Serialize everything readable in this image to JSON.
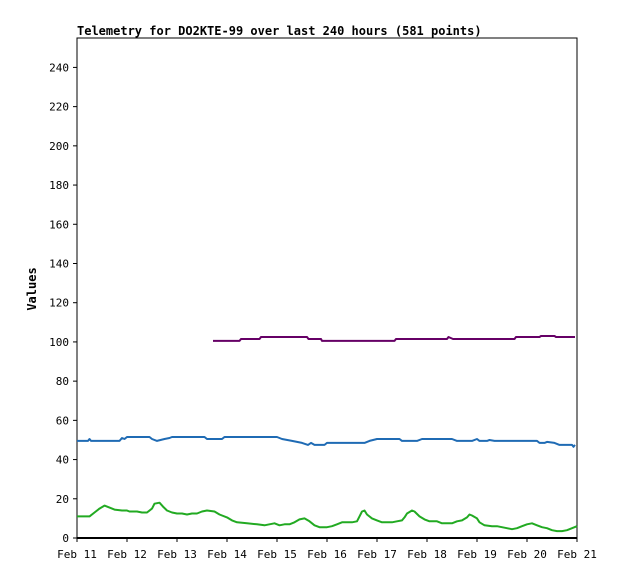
{
  "chart_data": {
    "type": "line",
    "title": "Telemetry for DO2KTE-99 over last 240 hours (581 points)",
    "ylabel": "Values",
    "xlabel": "",
    "ylim": [
      0,
      255
    ],
    "xlim": [
      0,
      10
    ],
    "yticks": [
      0,
      20,
      40,
      60,
      80,
      100,
      120,
      140,
      160,
      180,
      200,
      220,
      240
    ],
    "xticks": [
      {
        "label": "Feb 11",
        "x": 0
      },
      {
        "label": "Feb 12",
        "x": 1
      },
      {
        "label": "Feb 13",
        "x": 2
      },
      {
        "label": "Feb 14",
        "x": 3
      },
      {
        "label": "Feb 15",
        "x": 4
      },
      {
        "label": "Feb 16",
        "x": 5
      },
      {
        "label": "Feb 17",
        "x": 6
      },
      {
        "label": "Feb 18",
        "x": 7
      },
      {
        "label": "Feb 19",
        "x": 8
      },
      {
        "label": "Feb 20",
        "x": 9
      },
      {
        "label": "Feb 21",
        "x": 10
      }
    ],
    "grid": false,
    "series": [
      {
        "color": "#660066",
        "points": [
          [
            2.72,
            100.5
          ],
          [
            3.25,
            100.5
          ],
          [
            3.28,
            101.5
          ],
          [
            3.65,
            101.5
          ],
          [
            3.68,
            102.5
          ],
          [
            4.6,
            102.5
          ],
          [
            4.63,
            101.5
          ],
          [
            4.88,
            101.5
          ],
          [
            4.9,
            100.5
          ],
          [
            6.35,
            100.5
          ],
          [
            6.38,
            101.5
          ],
          [
            7.4,
            101.5
          ],
          [
            7.43,
            102.5
          ],
          [
            7.52,
            101.5
          ],
          [
            8.75,
            101.5
          ],
          [
            8.78,
            102.5
          ],
          [
            9.25,
            102.5
          ],
          [
            9.28,
            103
          ],
          [
            9.55,
            103
          ],
          [
            9.58,
            102.5
          ],
          [
            9.96,
            102.5
          ]
        ]
      },
      {
        "color": "#1f6bb4",
        "points": [
          [
            0,
            49.5
          ],
          [
            0.22,
            49.5
          ],
          [
            0.25,
            50.5
          ],
          [
            0.28,
            49.5
          ],
          [
            0.85,
            49.5
          ],
          [
            0.9,
            51
          ],
          [
            0.95,
            50.5
          ],
          [
            1.0,
            51.5
          ],
          [
            1.45,
            51.5
          ],
          [
            1.5,
            50.5
          ],
          [
            1.6,
            49.5
          ],
          [
            1.75,
            50.5
          ],
          [
            1.85,
            51
          ],
          [
            1.9,
            51.5
          ],
          [
            2.55,
            51.5
          ],
          [
            2.6,
            50.5
          ],
          [
            2.9,
            50.5
          ],
          [
            2.95,
            51.5
          ],
          [
            4.0,
            51.5
          ],
          [
            4.1,
            50.5
          ],
          [
            4.3,
            49.5
          ],
          [
            4.5,
            48.5
          ],
          [
            4.62,
            47.5
          ],
          [
            4.68,
            48.5
          ],
          [
            4.75,
            47.5
          ],
          [
            4.95,
            47.5
          ],
          [
            5.0,
            48.5
          ],
          [
            5.6,
            48.5
          ],
          [
            5.75,
            48.5
          ],
          [
            5.85,
            49.5
          ],
          [
            6.0,
            50.5
          ],
          [
            6.45,
            50.5
          ],
          [
            6.5,
            49.5
          ],
          [
            6.8,
            49.5
          ],
          [
            6.9,
            50.5
          ],
          [
            7.5,
            50.5
          ],
          [
            7.6,
            49.5
          ],
          [
            7.9,
            49.5
          ],
          [
            8.0,
            50.5
          ],
          [
            8.05,
            49.5
          ],
          [
            8.2,
            49.5
          ],
          [
            8.25,
            50
          ],
          [
            8.35,
            49.5
          ],
          [
            9.2,
            49.5
          ],
          [
            9.25,
            48.5
          ],
          [
            9.35,
            48.5
          ],
          [
            9.4,
            49
          ],
          [
            9.55,
            48.5
          ],
          [
            9.65,
            47.5
          ],
          [
            9.9,
            47.5
          ],
          [
            9.93,
            46.5
          ],
          [
            9.96,
            47.5
          ]
        ]
      },
      {
        "color": "#22aa22",
        "points": [
          [
            0,
            11
          ],
          [
            0.25,
            11
          ],
          [
            0.35,
            13
          ],
          [
            0.45,
            15
          ],
          [
            0.55,
            16.5
          ],
          [
            0.65,
            15.5
          ],
          [
            0.75,
            14.5
          ],
          [
            0.9,
            14
          ],
          [
            1.0,
            14
          ],
          [
            1.05,
            13.5
          ],
          [
            1.2,
            13.5
          ],
          [
            1.3,
            13
          ],
          [
            1.4,
            13
          ],
          [
            1.5,
            15
          ],
          [
            1.55,
            17.5
          ],
          [
            1.65,
            18
          ],
          [
            1.72,
            16
          ],
          [
            1.8,
            14
          ],
          [
            1.9,
            13
          ],
          [
            2.0,
            12.5
          ],
          [
            2.1,
            12.5
          ],
          [
            2.2,
            12
          ],
          [
            2.3,
            12.5
          ],
          [
            2.4,
            12.5
          ],
          [
            2.5,
            13.5
          ],
          [
            2.6,
            14
          ],
          [
            2.75,
            13.5
          ],
          [
            2.85,
            12
          ],
          [
            3.0,
            10.5
          ],
          [
            3.1,
            9
          ],
          [
            3.2,
            8
          ],
          [
            3.4,
            7.5
          ],
          [
            3.6,
            7
          ],
          [
            3.75,
            6.5
          ],
          [
            3.85,
            7
          ],
          [
            3.95,
            7.5
          ],
          [
            4.05,
            6.5
          ],
          [
            4.15,
            7
          ],
          [
            4.25,
            7
          ],
          [
            4.35,
            8
          ],
          [
            4.45,
            9.5
          ],
          [
            4.55,
            10
          ],
          [
            4.65,
            8.5
          ],
          [
            4.75,
            6.5
          ],
          [
            4.85,
            5.5
          ],
          [
            5.0,
            5.5
          ],
          [
            5.1,
            6
          ],
          [
            5.2,
            7
          ],
          [
            5.3,
            8
          ],
          [
            5.5,
            8
          ],
          [
            5.6,
            8.5
          ],
          [
            5.65,
            11
          ],
          [
            5.7,
            13.5
          ],
          [
            5.75,
            14
          ],
          [
            5.8,
            12
          ],
          [
            5.9,
            10
          ],
          [
            6.0,
            9
          ],
          [
            6.1,
            8
          ],
          [
            6.3,
            8
          ],
          [
            6.4,
            8.5
          ],
          [
            6.5,
            9
          ],
          [
            6.55,
            10.5
          ],
          [
            6.6,
            12.5
          ],
          [
            6.7,
            14
          ],
          [
            6.75,
            13.5
          ],
          [
            6.85,
            11
          ],
          [
            6.95,
            9.5
          ],
          [
            7.05,
            8.5
          ],
          [
            7.2,
            8.5
          ],
          [
            7.3,
            7.5
          ],
          [
            7.5,
            7.5
          ],
          [
            7.6,
            8.5
          ],
          [
            7.7,
            9
          ],
          [
            7.8,
            10.5
          ],
          [
            7.85,
            12
          ],
          [
            7.9,
            11.5
          ],
          [
            8.0,
            10
          ],
          [
            8.05,
            8
          ],
          [
            8.15,
            6.5
          ],
          [
            8.3,
            6
          ],
          [
            8.4,
            6
          ],
          [
            8.5,
            5.5
          ],
          [
            8.6,
            5
          ],
          [
            8.7,
            4.5
          ],
          [
            8.8,
            5
          ],
          [
            8.9,
            6
          ],
          [
            9.0,
            7
          ],
          [
            9.1,
            7.5
          ],
          [
            9.2,
            6.5
          ],
          [
            9.3,
            5.5
          ],
          [
            9.4,
            5
          ],
          [
            9.5,
            4
          ],
          [
            9.6,
            3.5
          ],
          [
            9.7,
            3.5
          ],
          [
            9.8,
            4
          ],
          [
            9.9,
            5
          ],
          [
            10.0,
            6
          ],
          [
            9.6,
            3.5
          ],
          [
            9.75,
            3.5
          ],
          [
            9.85,
            4
          ],
          [
            9.92,
            4.2
          ]
        ]
      }
    ]
  }
}
